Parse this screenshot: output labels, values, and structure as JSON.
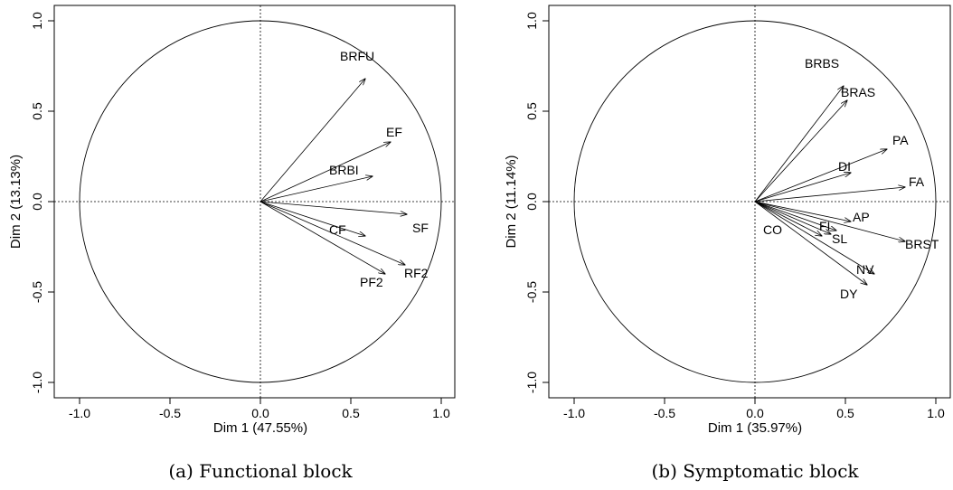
{
  "chart_data": [
    {
      "type": "scatter",
      "subtype": "correlation-circle",
      "caption": "(a) Functional block",
      "xlabel": "Dim 1 (47.55%)",
      "ylabel": "Dim 2 (13.13%)",
      "xlim": [
        -1.13,
        1.08
      ],
      "ylim": [
        -1.08,
        1.08
      ],
      "xticks": [
        -1.0,
        -0.5,
        0.0,
        0.5,
        1.0
      ],
      "yticks": [
        -1.0,
        -0.5,
        0.0,
        0.5,
        1.0
      ],
      "tick_labels": [
        "-1.0",
        "-0.5",
        "0.0",
        "0.5",
        "1.0"
      ],
      "grid": false,
      "vectors": [
        {
          "name": "BRFU",
          "x": 0.58,
          "y": 0.68
        },
        {
          "name": "EF",
          "x": 0.72,
          "y": 0.33
        },
        {
          "name": "BRBI",
          "x": 0.62,
          "y": 0.14
        },
        {
          "name": "SF",
          "x": 0.81,
          "y": -0.07
        },
        {
          "name": "CF",
          "x": 0.58,
          "y": -0.19
        },
        {
          "name": "RF2",
          "x": 0.8,
          "y": -0.35
        },
        {
          "name": "PF2",
          "x": 0.69,
          "y": -0.4
        }
      ]
    },
    {
      "type": "scatter",
      "subtype": "correlation-circle",
      "caption": "(b) Symptomatic block",
      "xlabel": "Dim 1 (35.97%)",
      "ylabel": "Dim 2 (11.14%)",
      "xlim": [
        -1.13,
        1.08
      ],
      "ylim": [
        -1.08,
        1.08
      ],
      "xticks": [
        -1.0,
        -0.5,
        0.0,
        0.5,
        1.0
      ],
      "yticks": [
        -1.0,
        -0.5,
        0.0,
        0.5,
        1.0
      ],
      "tick_labels": [
        "-1.0",
        "-0.5",
        "0.0",
        "0.5",
        "1.0"
      ],
      "grid": false,
      "vectors": [
        {
          "name": "BRBS",
          "x": 0.49,
          "y": 0.64
        },
        {
          "name": "BRAS",
          "x": 0.51,
          "y": 0.56
        },
        {
          "name": "PA",
          "x": 0.73,
          "y": 0.29
        },
        {
          "name": "DI",
          "x": 0.53,
          "y": 0.16
        },
        {
          "name": "FA",
          "x": 0.83,
          "y": 0.08
        },
        {
          "name": "AP",
          "x": 0.53,
          "y": -0.11
        },
        {
          "name": "FI",
          "x": 0.45,
          "y": -0.16
        },
        {
          "name": "SL",
          "x": 0.42,
          "y": -0.18
        },
        {
          "name": "BRST",
          "x": 0.83,
          "y": -0.22
        },
        {
          "name": "CO",
          "x": 0.37,
          "y": -0.19
        },
        {
          "name": "NV",
          "x": 0.66,
          "y": -0.4
        },
        {
          "name": "DY",
          "x": 0.62,
          "y": -0.46
        }
      ]
    }
  ]
}
